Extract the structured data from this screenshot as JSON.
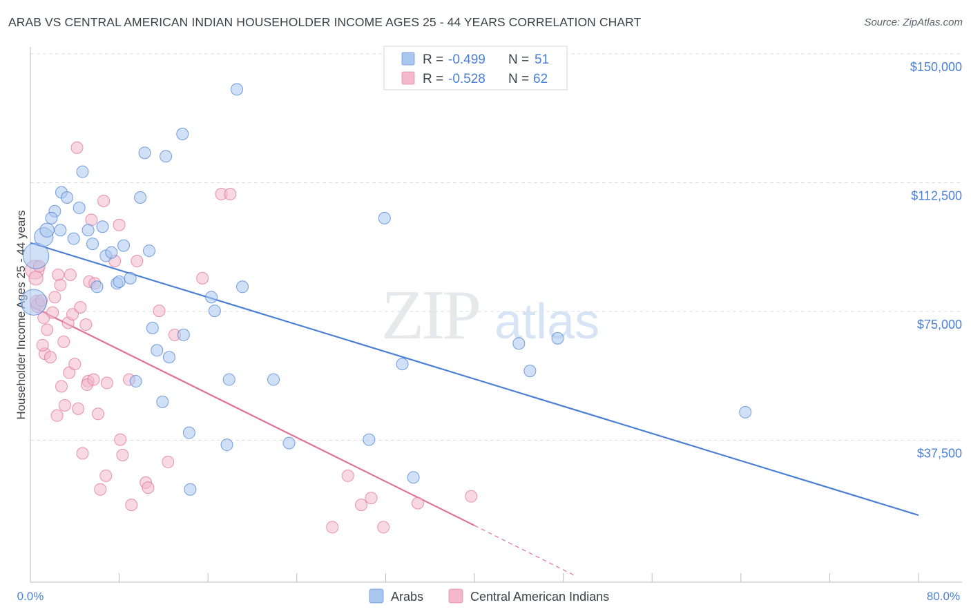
{
  "title": "ARAB VS CENTRAL AMERICAN INDIAN HOUSEHOLDER INCOME AGES 25 - 44 YEARS CORRELATION CHART",
  "source": "Source: ZipAtlas.com",
  "watermark": {
    "zip": "ZIP",
    "atlas": "atlas"
  },
  "colors": {
    "arabs": "#4a7fd4",
    "arabs_fill": "#a9c6ef",
    "cai": "#e07098",
    "cai_fill": "#f3b8cb",
    "axis_text": "#4a7fd4",
    "grid": "#d8d8d8"
  },
  "legend": {
    "rows": [
      {
        "r_label": "R =",
        "r_value": "-0.499",
        "n_label": "N =",
        "n_value": "51"
      },
      {
        "r_label": "R =",
        "r_value": "-0.528",
        "n_label": "N =",
        "n_value": "62"
      }
    ]
  },
  "chart_data": {
    "type": "scatter",
    "title": "ARAB VS CENTRAL AMERICAN INDIAN HOUSEHOLDER INCOME AGES 25 - 44 YEARS CORRELATION CHART",
    "xlabel": "",
    "ylabel": "Householder Income Ages 25 - 44 years",
    "xlim": [
      0,
      80
    ],
    "ylim": [
      0,
      155000
    ],
    "x_tick_labels": [
      "0.0%",
      "80.0%"
    ],
    "y_ticks": [
      37500,
      75000,
      112500,
      150000
    ],
    "y_tick_labels": [
      "$37,500",
      "$75,000",
      "$112,500",
      "$150,000"
    ],
    "series": [
      {
        "name": "Arabs",
        "r": -0.499,
        "n": 51,
        "trend": {
          "x": [
            0,
            80
          ],
          "y": [
            98800,
            19500
          ]
        },
        "points": [
          [
            0.5,
            95000,
            2.2
          ],
          [
            0.3,
            81500,
            2.2
          ],
          [
            1.2,
            100500,
            1.6
          ],
          [
            1.5,
            102500,
            1.2
          ],
          [
            2.2,
            108000,
            1.0
          ],
          [
            2.8,
            113500,
            1.0
          ],
          [
            3.3,
            112000,
            1.0
          ],
          [
            4.4,
            109000,
            1.0
          ],
          [
            2.7,
            102500,
            1.0
          ],
          [
            1.9,
            106000,
            1.0
          ],
          [
            4.7,
            119500,
            1.0
          ],
          [
            3.9,
            100000,
            1.0
          ],
          [
            5.2,
            102500,
            1.0
          ],
          [
            5.6,
            98500,
            1.0
          ],
          [
            6.5,
            103500,
            1.0
          ],
          [
            6.8,
            95000,
            1.0
          ],
          [
            7.3,
            96000,
            1.0
          ],
          [
            8.4,
            98000,
            1.0
          ],
          [
            7.8,
            87000,
            1.0
          ],
          [
            8.0,
            87500,
            1.0
          ],
          [
            9.0,
            88500,
            1.0
          ],
          [
            6.0,
            86000,
            1.0
          ],
          [
            9.9,
            112000,
            1.0
          ],
          [
            10.3,
            125000,
            1.0
          ],
          [
            10.7,
            96500,
            1.0
          ],
          [
            12.2,
            124000,
            1.0
          ],
          [
            13.7,
            130500,
            1.0
          ],
          [
            18.6,
            143500,
            1.0
          ],
          [
            11.0,
            74000,
            1.0
          ],
          [
            11.4,
            67500,
            1.0
          ],
          [
            12.5,
            65500,
            1.0
          ],
          [
            13.8,
            72000,
            1.0
          ],
          [
            9.5,
            58500,
            1.0
          ],
          [
            11.9,
            52500,
            1.0
          ],
          [
            14.3,
            43500,
            1.0
          ],
          [
            14.4,
            27000,
            1.0
          ],
          [
            16.3,
            83000,
            1.0
          ],
          [
            16.6,
            79000,
            1.0
          ],
          [
            19.1,
            86000,
            1.0
          ],
          [
            17.7,
            40000,
            1.0
          ],
          [
            17.9,
            59000,
            1.0
          ],
          [
            21.9,
            59000,
            1.0
          ],
          [
            23.3,
            40500,
            1.0
          ],
          [
            30.5,
            41500,
            1.0
          ],
          [
            31.9,
            106000,
            1.0
          ],
          [
            33.5,
            63500,
            1.0
          ],
          [
            34.5,
            30500,
            1.0
          ],
          [
            44.0,
            69500,
            1.0
          ],
          [
            45.0,
            61500,
            1.0
          ],
          [
            47.5,
            71000,
            1.0
          ],
          [
            64.4,
            49500,
            1.0
          ]
        ]
      },
      {
        "name": "Central American Indians",
        "r": -0.528,
        "n": 62,
        "trend": {
          "x": [
            0,
            40
          ],
          "y": [
            80500,
            16500
          ]
        },
        "trend_dashed": {
          "x": [
            40,
            49
          ],
          "y": [
            16500,
            2000
          ]
        },
        "points": [
          [
            0.4,
            91000,
            1.6
          ],
          [
            0.5,
            88500,
            1.2
          ],
          [
            0.6,
            81500,
            1.2
          ],
          [
            0.7,
            80500,
            1.2
          ],
          [
            1.0,
            82000,
            1.0
          ],
          [
            1.2,
            77000,
            1.0
          ],
          [
            1.5,
            73500,
            1.0
          ],
          [
            1.3,
            66500,
            1.0
          ],
          [
            1.8,
            65500,
            1.0
          ],
          [
            2.2,
            83000,
            1.0
          ],
          [
            2.0,
            78500,
            1.0
          ],
          [
            2.5,
            89500,
            1.0
          ],
          [
            2.7,
            86500,
            1.0
          ],
          [
            2.8,
            57000,
            1.0
          ],
          [
            3.0,
            70000,
            1.0
          ],
          [
            3.1,
            51500,
            1.0
          ],
          [
            3.4,
            75500,
            1.0
          ],
          [
            3.5,
            61000,
            1.0
          ],
          [
            3.6,
            89500,
            1.0
          ],
          [
            3.8,
            78000,
            1.0
          ],
          [
            4.0,
            63500,
            1.0
          ],
          [
            4.3,
            50500,
            1.0
          ],
          [
            4.5,
            80000,
            1.0
          ],
          [
            4.7,
            37500,
            1.0
          ],
          [
            5.0,
            75000,
            1.0
          ],
          [
            5.2,
            58500,
            1.0
          ],
          [
            5.1,
            57500,
            1.0
          ],
          [
            5.3,
            87500,
            1.0
          ],
          [
            5.5,
            105500,
            1.0
          ],
          [
            5.7,
            59000,
            1.0
          ],
          [
            5.8,
            87000,
            1.0
          ],
          [
            6.1,
            49000,
            1.0
          ],
          [
            6.3,
            27000,
            1.0
          ],
          [
            6.6,
            111000,
            1.0
          ],
          [
            6.8,
            31000,
            1.0
          ],
          [
            6.9,
            58000,
            1.0
          ],
          [
            4.2,
            126500,
            1.0
          ],
          [
            7.6,
            93500,
            1.0
          ],
          [
            8.0,
            104000,
            1.0
          ],
          [
            8.1,
            41500,
            1.0
          ],
          [
            8.3,
            37000,
            1.0
          ],
          [
            8.9,
            59000,
            1.0
          ],
          [
            9.1,
            22500,
            1.0
          ],
          [
            9.6,
            93500,
            1.0
          ],
          [
            10.4,
            29000,
            1.0
          ],
          [
            10.6,
            27500,
            1.0
          ],
          [
            11.6,
            79000,
            1.0
          ],
          [
            12.4,
            35000,
            1.0
          ],
          [
            13.0,
            72000,
            1.0
          ],
          [
            15.5,
            88500,
            1.0
          ],
          [
            17.2,
            113000,
            1.0
          ],
          [
            18.0,
            113000,
            1.0
          ],
          [
            27.2,
            16000,
            1.0
          ],
          [
            28.6,
            31000,
            1.0
          ],
          [
            29.8,
            22500,
            1.0
          ],
          [
            30.7,
            24500,
            1.0
          ],
          [
            31.8,
            16000,
            1.0
          ],
          [
            34.9,
            23000,
            1.0
          ],
          [
            39.7,
            25000,
            1.0
          ],
          [
            0.8,
            92000,
            1.0
          ],
          [
            1.1,
            69000,
            1.0
          ],
          [
            2.4,
            48500,
            1.0
          ]
        ]
      }
    ]
  },
  "bottom_legend": {
    "items": [
      "Arabs",
      "Central American Indians"
    ]
  }
}
